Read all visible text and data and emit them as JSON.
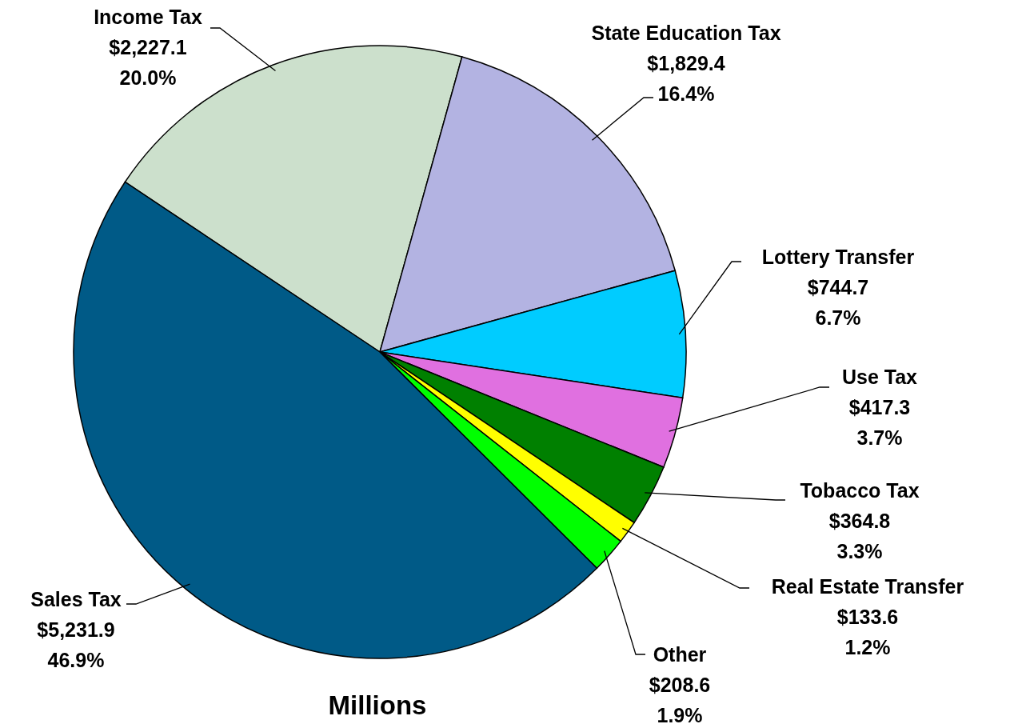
{
  "chart_data": {
    "type": "pie",
    "categories": [
      "Income Tax",
      "State Education Tax",
      "Lottery Transfer",
      "Use Tax",
      "Tobacco Tax",
      "Real Estate Transfer",
      "Other",
      "Sales Tax"
    ],
    "values": [
      2227.1,
      1829.4,
      744.7,
      417.3,
      364.8,
      133.6,
      208.6,
      5231.9
    ],
    "colors": [
      "#cce0cc",
      "#b3b3e2",
      "#00ccff",
      "#e070e0",
      "#008000",
      "#ffff00",
      "#00ff00",
      "#005a87"
    ],
    "value_labels": [
      "$2,227.1\n20.0%",
      "$1,829.4\n16.4%",
      "$744.7\n6.7%",
      "$417.3\n3.7%",
      "$364.8\n3.3%",
      "$133.6\n1.2%",
      "$208.6\n1.9%",
      "$5,231.9\n46.9%"
    ],
    "annotations": [
      "Millions"
    ]
  }
}
